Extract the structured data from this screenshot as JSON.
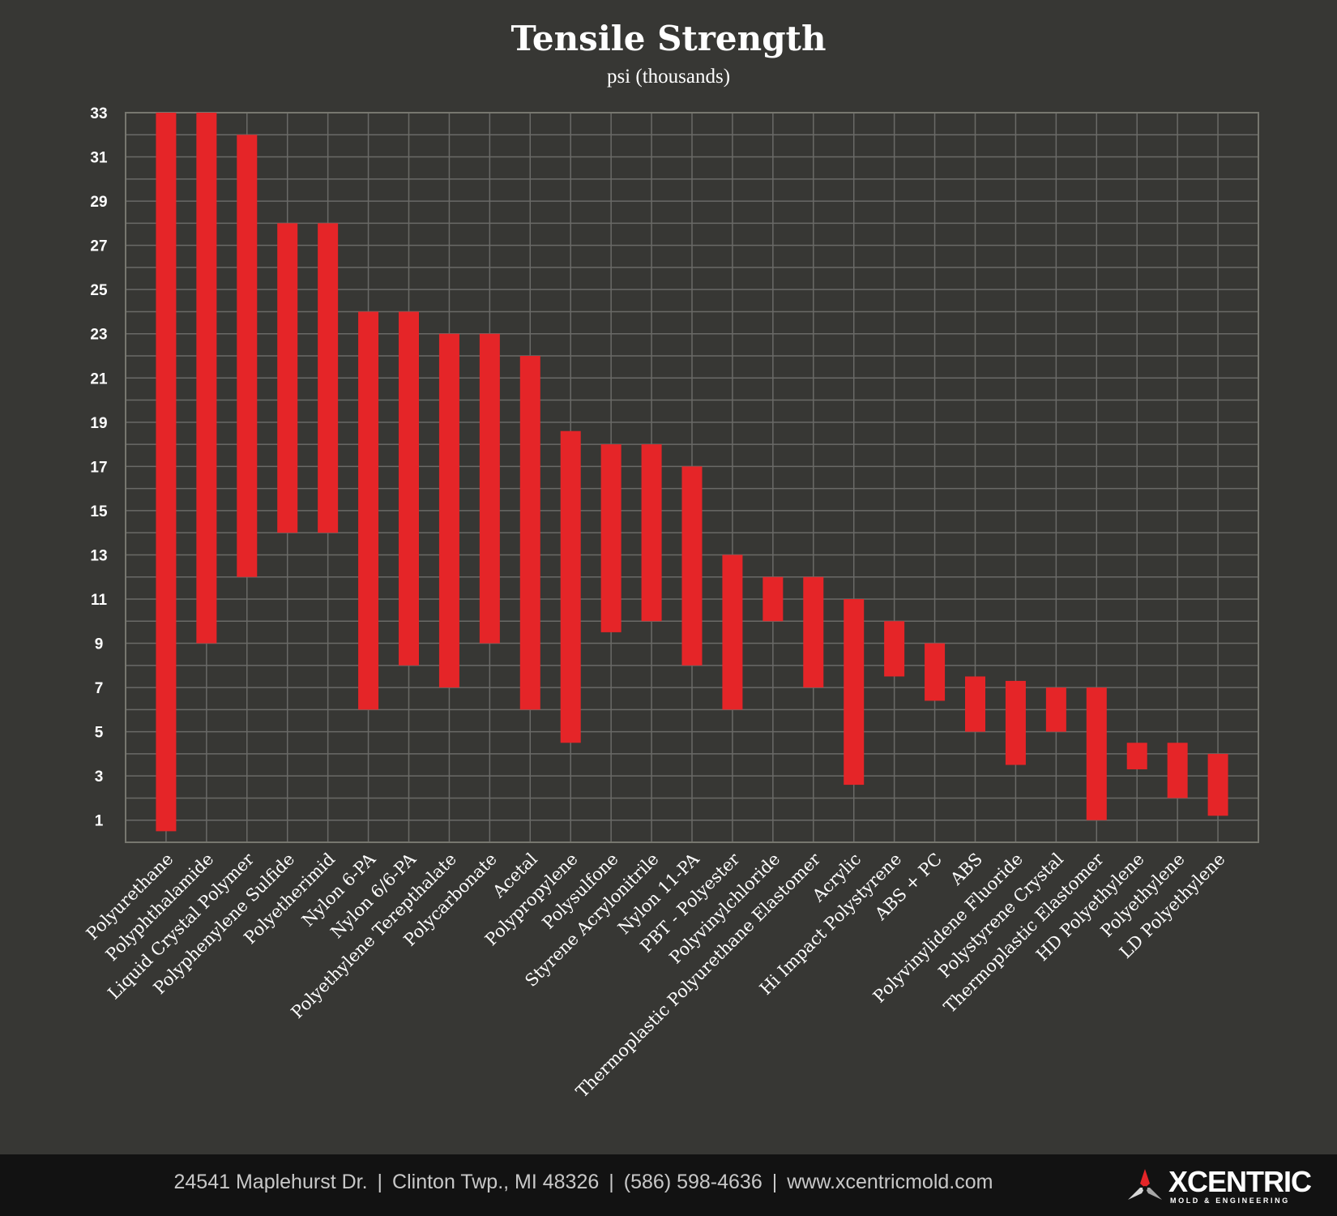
{
  "chart_data": {
    "type": "floating-bar",
    "title": "Tensile Strength",
    "subtitle": "psi (thousands)",
    "ylim": [
      0,
      33
    ],
    "yticks": [
      1,
      3,
      5,
      7,
      9,
      11,
      13,
      15,
      17,
      19,
      21,
      23,
      25,
      27,
      29,
      31,
      33
    ],
    "grid": true,
    "bar_color": "#e52528",
    "categories": [
      "Polyurethane",
      "Polyphthalamide",
      "Liquid Crystal Polymer",
      "Polyphenylene Sulfide",
      "Polyetherimid",
      "Nylon 6-PA",
      "Nylon 6/6-PA",
      "Polyethylene Terepthalate",
      "Polycarbonate",
      "Acetal",
      "Polypropylene",
      "Polysulfone",
      "Styrene Acrylonitrile",
      "Nylon 11-PA",
      "PBT - Polyester",
      "Polyvinylchloride",
      "Thermoplastic Polyurethane Elastomer",
      "Acrylic",
      "Hi Impact Polystyrene",
      "ABS + PC",
      "ABS",
      "Polyvinylidene Fluoride",
      "Polystyrene Crystal",
      "Thermoplastic Elastomer",
      "HD Polyethylene",
      "Polyethylene",
      "LD Polyethylene"
    ],
    "ranges": [
      [
        0.5,
        33
      ],
      [
        9,
        33
      ],
      [
        12,
        32
      ],
      [
        14,
        28
      ],
      [
        14,
        28
      ],
      [
        6,
        24
      ],
      [
        8,
        24
      ],
      [
        7,
        23
      ],
      [
        9,
        23
      ],
      [
        6,
        22
      ],
      [
        4.5,
        18.6
      ],
      [
        9.5,
        18
      ],
      [
        10,
        18
      ],
      [
        8,
        17
      ],
      [
        6,
        13
      ],
      [
        10,
        12
      ],
      [
        7,
        12
      ],
      [
        2.6,
        11
      ],
      [
        7.5,
        10
      ],
      [
        6.4,
        9
      ],
      [
        5,
        7.5
      ],
      [
        3.5,
        7.3
      ],
      [
        5,
        7
      ],
      [
        1,
        7
      ],
      [
        3.3,
        4.5
      ],
      [
        2,
        4.5
      ],
      [
        1.2,
        4
      ]
    ]
  },
  "footer": {
    "address": "24541 Maplehurst Dr.",
    "city": "Clinton Twp., MI 48326",
    "phone": "(586) 598-4636",
    "website": "www.xcentricmold.com",
    "separator": "|",
    "logo_name": "XCENTRIC",
    "logo_tagline": "MOLD & ENGINEERING"
  }
}
